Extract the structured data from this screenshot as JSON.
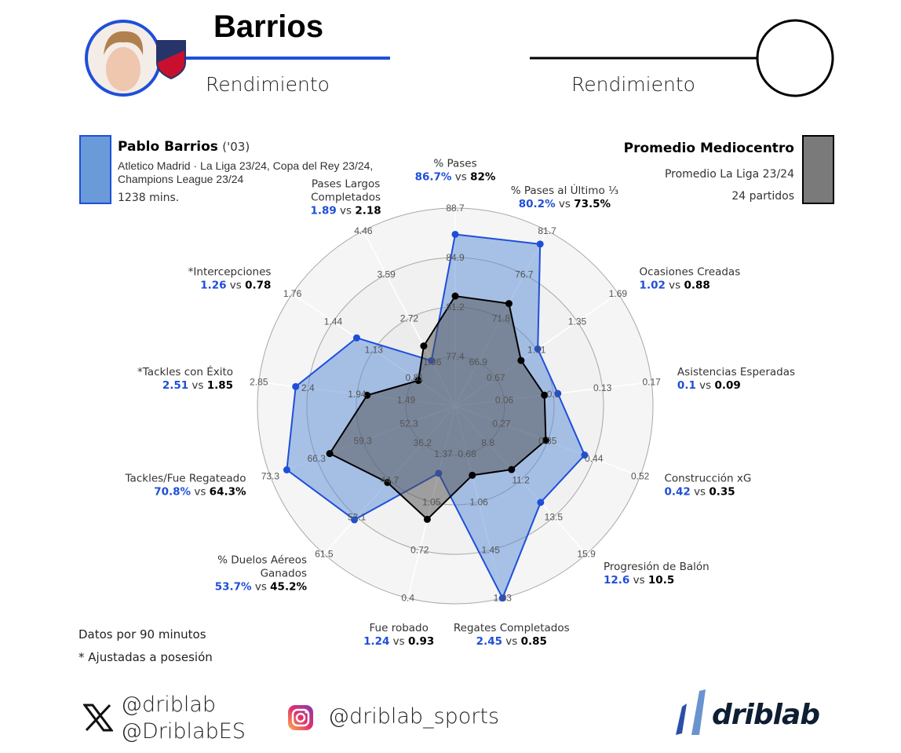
{
  "header": {
    "player_short": "Barrios",
    "left_subtitle": "Rendimiento",
    "right_subtitle": "Rendimiento",
    "left_accent": "#1f4fd8",
    "right_accent": "#000000"
  },
  "legend": {
    "player": {
      "name": "Pablo Barrios",
      "year": "('03)",
      "context": "Atletico Madrid · La Liga 23/24, Copa del Rey 23/24, Champions League 23/24",
      "minutes": "1238 mins.",
      "color": "#6a9ad8"
    },
    "average": {
      "name": "Promedio Mediocentro",
      "context": "Promedio La Liga 23/24",
      "matches": "24 partidos",
      "color": "#7a7a7a"
    }
  },
  "chart_data": {
    "type": "radar",
    "series": [
      {
        "name": "Pablo Barrios",
        "color": "#1f4fd8"
      },
      {
        "name": "Promedio Mediocentro",
        "color": "#000000"
      }
    ],
    "axes": [
      {
        "label": [
          "% Pases"
        ],
        "player": "86.7%",
        "avg": "82%",
        "p": 86.7,
        "a": 82,
        "ticks": [
          "77.4",
          "81.2",
          "84.9",
          "88.7"
        ]
      },
      {
        "label": [
          "% Pases al Último ⅓"
        ],
        "player": "80.2%",
        "avg": "73.5%",
        "p": 80.2,
        "a": 73.5,
        "ticks": [
          "66.9",
          "71.8",
          "76.7",
          "81.7"
        ]
      },
      {
        "label": [
          "Ocasiones Creadas"
        ],
        "player": "1.02",
        "avg": "0.88",
        "p": 1.02,
        "a": 0.88,
        "ticks": [
          "0.67",
          "1.01",
          "1.35",
          "1.69"
        ]
      },
      {
        "label": [
          "Asistencias Esperadas"
        ],
        "player": "0.1",
        "avg": "0.09",
        "p": 0.1,
        "a": 0.09,
        "ticks": [
          "0.06",
          "0.1",
          "0.13",
          "0.17"
        ]
      },
      {
        "label": [
          "Construcción xG"
        ],
        "player": "0.42",
        "avg": "0.35",
        "p": 0.42,
        "a": 0.35,
        "ticks": [
          "0.27",
          "0.35",
          "0.44",
          "0.52"
        ]
      },
      {
        "label": [
          "Progresión de Balón"
        ],
        "player": "12.6",
        "avg": "10.5",
        "p": 12.6,
        "a": 10.5,
        "ticks": [
          "8.8",
          "11.2",
          "13.5",
          "15.9"
        ]
      },
      {
        "label": [
          "Regates Completados"
        ],
        "player": "2.45",
        "avg": "0.85",
        "p": 2.45,
        "a": 0.85,
        "ticks": [
          "0.68",
          "1.06",
          "1.45",
          "1.83"
        ]
      },
      {
        "label": [
          "Fue robado"
        ],
        "player": "1.24",
        "avg": "0.93",
        "p": 1.24,
        "a": 0.93,
        "ticks": [
          "1.37",
          "1.05",
          "0.72",
          "0.4"
        ]
      },
      {
        "label": [
          "% Duelos Aéreos",
          "Ganados"
        ],
        "player": "53.7%",
        "avg": "45.2%",
        "p": 53.7,
        "a": 45.2,
        "ticks": [
          "36.2",
          "44.7",
          "53.1",
          "61.5"
        ]
      },
      {
        "label": [
          "Tackles/Fue Regateado"
        ],
        "player": "70.8%",
        "avg": "64.3%",
        "p": 70.8,
        "a": 64.3,
        "ticks": [
          "52.3",
          "59.3",
          "66.3",
          "73.3"
        ]
      },
      {
        "label": [
          "*Tackles con Éxito"
        ],
        "player": "2.51",
        "avg": "1.85",
        "p": 2.51,
        "a": 1.85,
        "ticks": [
          "1.49",
          "1.94",
          "2.4",
          "2.85"
        ]
      },
      {
        "label": [
          "*Intercepciones"
        ],
        "player": "1.26",
        "avg": "0.78",
        "p": 1.26,
        "a": 0.78,
        "ticks": [
          "0.81",
          "1.13",
          "1.44",
          "1.76"
        ]
      },
      {
        "label": [
          "Pases Largos",
          "Completados"
        ],
        "player": "1.89",
        "avg": "2.18",
        "p": 1.89,
        "a": 2.18,
        "ticks": [
          "1.86",
          "2.72",
          "3.59",
          "4.46"
        ]
      }
    ],
    "vs_word": "vs"
  },
  "notes": {
    "per90": "Datos por 90 minutos",
    "adjusted": "* Ajustadas a posesión"
  },
  "footer": {
    "x_handle_1": "@driblab",
    "x_handle_2": "@DriblabES",
    "instagram": "@driblab_sports",
    "logo_text": "driblab",
    "x_icon": "x-icon",
    "instagram_icon": "instagram-icon"
  }
}
